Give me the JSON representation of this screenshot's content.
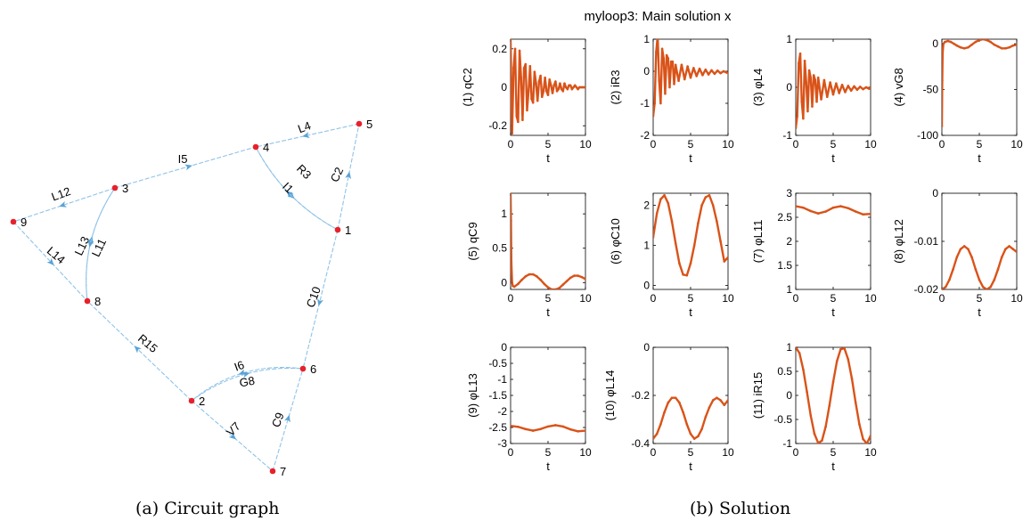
{
  "captions": {
    "a": "(a) Circuit graph",
    "b": "(b) Solution"
  },
  "colors": {
    "edge": "#8fc3e8",
    "arrow": "#5aa3d6",
    "node": "#e8202a",
    "line": "#d95319",
    "axis": "#000000"
  },
  "graph": {
    "nodes": [
      {
        "id": "1"
      },
      {
        "id": "2"
      },
      {
        "id": "3"
      },
      {
        "id": "4"
      },
      {
        "id": "5"
      },
      {
        "id": "6"
      },
      {
        "id": "7"
      },
      {
        "id": "8"
      },
      {
        "id": "9"
      }
    ],
    "edges": [
      {
        "label": "L4",
        "from": "5",
        "to": "4"
      },
      {
        "label": "I5",
        "from": "3",
        "to": "4"
      },
      {
        "label": "R3",
        "from": "4",
        "to": "1"
      },
      {
        "label": "I1",
        "from": "1",
        "to": "4"
      },
      {
        "label": "C2",
        "from": "1",
        "to": "5"
      },
      {
        "label": "L12",
        "from": "3",
        "to": "9"
      },
      {
        "label": "L13",
        "from": "8",
        "to": "3"
      },
      {
        "label": "L11",
        "from": "3",
        "to": "8"
      },
      {
        "label": "L14",
        "from": "9",
        "to": "8"
      },
      {
        "label": "C10",
        "from": "1",
        "to": "6"
      },
      {
        "label": "R15",
        "from": "2",
        "to": "8"
      },
      {
        "label": "I6",
        "from": "6",
        "to": "2"
      },
      {
        "label": "G8",
        "from": "2",
        "to": "6"
      },
      {
        "label": "V7",
        "from": "2",
        "to": "7"
      },
      {
        "label": "C9",
        "from": "7",
        "to": "6"
      }
    ]
  },
  "chart_data": {
    "type": "line",
    "title": "myloop3: Main solution x",
    "xlabel": "t",
    "grid": false,
    "subplots": [
      {
        "ylabel": "(1) qC2",
        "xlim": [
          0,
          10
        ],
        "ylim": [
          -0.25,
          0.25
        ],
        "xticks": [
          "0",
          "5",
          "10"
        ],
        "yticks": [
          "-0.2",
          "0",
          "0.2"
        ],
        "x": [
          0,
          0.2,
          0.4,
          0.6,
          0.8,
          1.0,
          1.2,
          1.4,
          1.6,
          1.8,
          2.0,
          2.2,
          2.4,
          2.6,
          2.8,
          3.0,
          3.2,
          3.4,
          3.6,
          3.8,
          4.0,
          4.2,
          4.4,
          4.6,
          4.8,
          5.0,
          5.2,
          5.4,
          5.6,
          5.8,
          6.0,
          6.2,
          6.4,
          6.6,
          6.8,
          7.0,
          7.2,
          7.4,
          7.6,
          7.8,
          8.0,
          8.2,
          8.4,
          8.6,
          8.8,
          9.0,
          9.2,
          9.4,
          9.6,
          9.8,
          10.0
        ],
        "y": [
          0.25,
          -0.24,
          0.1,
          0.2,
          -0.15,
          -0.18,
          0.19,
          0.05,
          -0.17,
          0.1,
          0.12,
          -0.12,
          -0.02,
          0.11,
          -0.06,
          -0.08,
          0.08,
          0.02,
          -0.07,
          0.03,
          0.06,
          -0.05,
          -0.02,
          0.05,
          -0.02,
          -0.04,
          0.04,
          0.01,
          -0.03,
          0.01,
          0.03,
          -0.02,
          -0.01,
          0.02,
          -0.01,
          -0.02,
          0.02,
          0.0,
          -0.01,
          0.01,
          0.01,
          -0.01,
          0.0,
          0.01,
          0.0,
          -0.01,
          0.0,
          0.0,
          0.0,
          0.0,
          0.0
        ]
      },
      {
        "ylabel": "(2) iR3",
        "xlim": [
          0,
          10
        ],
        "ylim": [
          -2,
          1
        ],
        "xticks": [
          "0",
          "5",
          "10"
        ],
        "yticks": [
          "-2",
          "-1",
          "0",
          "1"
        ],
        "x": [
          0,
          0.2,
          0.4,
          0.6,
          0.8,
          1.0,
          1.2,
          1.4,
          1.6,
          1.8,
          2.0,
          2.2,
          2.4,
          2.6,
          2.8,
          3.0,
          3.4,
          3.8,
          4.2,
          4.6,
          5.0,
          5.4,
          5.8,
          6.2,
          6.6,
          7.0,
          7.4,
          7.8,
          8.2,
          8.6,
          9.0,
          9.4,
          9.8,
          10.0
        ],
        "y": [
          -1.4,
          -1.0,
          0.6,
          1.1,
          -0.3,
          -1.0,
          0.7,
          0.4,
          -0.7,
          0.5,
          0.4,
          -0.5,
          0.3,
          0.3,
          -0.4,
          0.2,
          -0.3,
          0.2,
          -0.25,
          0.15,
          -0.2,
          0.1,
          -0.15,
          0.08,
          -0.12,
          0.05,
          -0.1,
          0.03,
          -0.08,
          0.02,
          -0.06,
          0.0,
          -0.04,
          -0.05
        ]
      },
      {
        "ylabel": "(3) φL4",
        "xlim": [
          0,
          10
        ],
        "ylim": [
          -1,
          1
        ],
        "xticks": [
          "0",
          "5",
          "10"
        ],
        "yticks": [
          "-1",
          "0",
          "1"
        ],
        "x": [
          0,
          0.2,
          0.4,
          0.6,
          0.8,
          1.0,
          1.2,
          1.4,
          1.6,
          1.8,
          2.0,
          2.2,
          2.4,
          2.6,
          2.8,
          3.0,
          3.4,
          3.8,
          4.2,
          4.6,
          5.0,
          5.4,
          5.8,
          6.2,
          6.6,
          7.0,
          7.4,
          7.8,
          8.2,
          8.6,
          9.0,
          9.4,
          9.8,
          10.0
        ],
        "y": [
          -0.85,
          -0.6,
          0.5,
          0.7,
          -0.3,
          -0.65,
          0.55,
          0.1,
          -0.5,
          0.35,
          0.2,
          -0.4,
          0.25,
          0.15,
          -0.3,
          0.2,
          -0.25,
          0.15,
          -0.2,
          0.1,
          -0.15,
          0.08,
          -0.12,
          0.05,
          -0.1,
          0.03,
          -0.07,
          0.02,
          -0.05,
          0.01,
          -0.04,
          0.0,
          -0.03,
          -0.02
        ]
      },
      {
        "ylabel": "(4) vG8",
        "xlim": [
          0,
          10
        ],
        "ylim": [
          -100,
          5
        ],
        "xticks": [
          "0",
          "5",
          "10"
        ],
        "yticks": [
          "-100",
          "-50",
          "0"
        ],
        "x": [
          0,
          0.05,
          0.1,
          0.2,
          0.4,
          0.8,
          1.2,
          1.6,
          2.0,
          2.5,
          3.0,
          3.5,
          4.0,
          4.5,
          5.0,
          5.5,
          6.0,
          6.5,
          7.0,
          7.5,
          8.0,
          8.5,
          9.0,
          9.5,
          10.0
        ],
        "y": [
          -90,
          -40,
          -10,
          0,
          2,
          3,
          2,
          0,
          -2,
          -4,
          -5,
          -4,
          -1,
          2,
          4,
          5,
          4,
          2,
          -1,
          -3,
          -5,
          -5,
          -4,
          -2,
          -1
        ]
      },
      {
        "ylabel": "(5) qC9",
        "xlim": [
          0,
          10
        ],
        "ylim": [
          -0.1,
          1.3
        ],
        "xticks": [
          "0",
          "5",
          "10"
        ],
        "yticks": [
          "0",
          "0.5",
          "1"
        ],
        "x": [
          0,
          0.05,
          0.1,
          0.2,
          0.3,
          0.5,
          1.0,
          1.5,
          2.0,
          2.5,
          3.0,
          3.5,
          4.0,
          4.5,
          5.0,
          5.5,
          6.0,
          6.5,
          7.0,
          7.5,
          8.0,
          8.5,
          9.0,
          9.5,
          10.0
        ],
        "y": [
          1.3,
          0.9,
          0.3,
          0.0,
          -0.05,
          -0.06,
          -0.02,
          0.04,
          0.09,
          0.12,
          0.12,
          0.09,
          0.04,
          -0.02,
          -0.07,
          -0.1,
          -0.1,
          -0.08,
          -0.03,
          0.02,
          0.07,
          0.1,
          0.1,
          0.08,
          0.05
        ]
      },
      {
        "ylabel": "(6) φC10",
        "xlim": [
          0,
          10
        ],
        "ylim": [
          -0.1,
          2.3
        ],
        "xticks": [
          "0",
          "5",
          "10"
        ],
        "yticks": [
          "0",
          "1",
          "2"
        ],
        "x": [
          0,
          0.5,
          1.0,
          1.5,
          2.0,
          2.5,
          3.0,
          3.5,
          4.0,
          4.5,
          5.0,
          5.5,
          6.0,
          6.5,
          7.0,
          7.5,
          8.0,
          8.5,
          9.0,
          9.5,
          10.0
        ],
        "y": [
          1.2,
          1.8,
          2.15,
          2.25,
          2.05,
          1.6,
          1.05,
          0.55,
          0.27,
          0.25,
          0.55,
          1.0,
          1.55,
          2.0,
          2.2,
          2.25,
          2.0,
          1.6,
          1.1,
          0.6,
          0.7
        ]
      },
      {
        "ylabel": "(7) φL11",
        "xlim": [
          0,
          10
        ],
        "ylim": [
          1,
          3
        ],
        "xticks": [
          "0",
          "5",
          "10"
        ],
        "yticks": [
          "1",
          "1.5",
          "2",
          "2.5",
          "3"
        ],
        "x": [
          0,
          1,
          2,
          3,
          4,
          5,
          6,
          7,
          8,
          9,
          10
        ],
        "y": [
          2.73,
          2.7,
          2.63,
          2.58,
          2.62,
          2.7,
          2.73,
          2.69,
          2.62,
          2.56,
          2.57
        ]
      },
      {
        "ylabel": "(8) φL12",
        "xlim": [
          0,
          10
        ],
        "ylim": [
          -0.02,
          0
        ],
        "xticks": [
          "0",
          "5",
          "10"
        ],
        "yticks": [
          "-0.02",
          "-0.01",
          "0"
        ],
        "x": [
          0,
          0.5,
          1.0,
          1.5,
          2.0,
          2.5,
          3.0,
          3.5,
          4.0,
          4.5,
          5.0,
          5.5,
          6.0,
          6.5,
          7.0,
          7.5,
          8.0,
          8.5,
          9.0,
          9.5,
          10.0
        ],
        "y": [
          -0.02,
          -0.0195,
          -0.018,
          -0.0158,
          -0.0133,
          -0.0116,
          -0.011,
          -0.0116,
          -0.0133,
          -0.0158,
          -0.018,
          -0.0195,
          -0.02,
          -0.0195,
          -0.018,
          -0.0158,
          -0.0133,
          -0.0116,
          -0.011,
          -0.0116,
          -0.0122
        ]
      },
      {
        "ylabel": "(9) φL13",
        "xlim": [
          0,
          10
        ],
        "ylim": [
          -3,
          0
        ],
        "xticks": [
          "0",
          "5",
          "10"
        ],
        "yticks": [
          "-3",
          "-2.5",
          "-2",
          "-1.5",
          "-1",
          "-0.5",
          "0"
        ],
        "x": [
          0,
          1,
          2,
          3,
          4,
          5,
          6,
          7,
          8,
          9,
          10
        ],
        "y": [
          -2.45,
          -2.48,
          -2.55,
          -2.6,
          -2.55,
          -2.47,
          -2.43,
          -2.47,
          -2.56,
          -2.62,
          -2.6
        ]
      },
      {
        "ylabel": "(10) φL14",
        "xlim": [
          0,
          10
        ],
        "ylim": [
          -0.4,
          0
        ],
        "xticks": [
          "0",
          "5",
          "10"
        ],
        "yticks": [
          "-0.4",
          "-0.2",
          "0"
        ],
        "x": [
          0,
          0.5,
          1.0,
          1.5,
          2.0,
          2.5,
          3.0,
          3.5,
          4.0,
          4.5,
          5.0,
          5.5,
          6.0,
          6.5,
          7.0,
          7.5,
          8.0,
          8.5,
          9.0,
          9.5,
          10.0
        ],
        "y": [
          -0.38,
          -0.36,
          -0.32,
          -0.27,
          -0.23,
          -0.21,
          -0.21,
          -0.23,
          -0.27,
          -0.32,
          -0.36,
          -0.38,
          -0.37,
          -0.34,
          -0.29,
          -0.25,
          -0.22,
          -0.21,
          -0.22,
          -0.24,
          -0.22
        ]
      },
      {
        "ylabel": "(11) iR15",
        "xlim": [
          0,
          10
        ],
        "ylim": [
          -1,
          1
        ],
        "xticks": [
          "0",
          "5",
          "10"
        ],
        "yticks": [
          "-1",
          "-0.5",
          "0",
          "0.5",
          "1"
        ],
        "x": [
          0,
          0.5,
          1.0,
          1.5,
          2.0,
          2.5,
          3.0,
          3.5,
          4.0,
          4.5,
          5.0,
          5.5,
          6.0,
          6.5,
          7.0,
          7.5,
          8.0,
          8.5,
          9.0,
          9.5,
          10.0
        ],
        "y": [
          1.0,
          0.88,
          0.54,
          0.07,
          -0.42,
          -0.8,
          -0.99,
          -0.94,
          -0.65,
          -0.21,
          0.28,
          0.71,
          0.96,
          0.98,
          0.75,
          0.35,
          -0.15,
          -0.6,
          -0.91,
          -1.0,
          -0.84
        ]
      }
    ]
  }
}
